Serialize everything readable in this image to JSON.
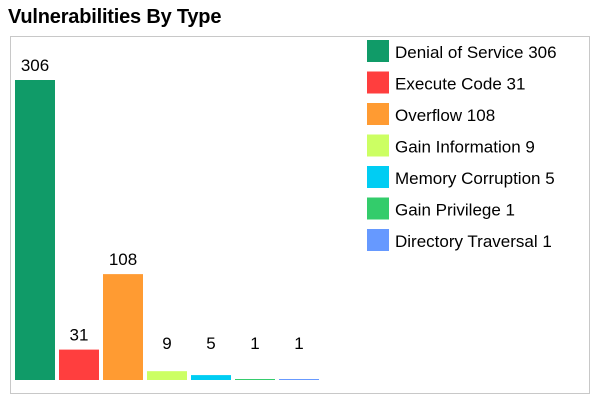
{
  "chart_data": {
    "type": "bar",
    "title": "Vulnerabilities By Type",
    "xlabel": "",
    "ylabel": "",
    "ylim": [
      0,
      306
    ],
    "grid": false,
    "legend": "right",
    "categories": [
      "Denial of Service",
      "Execute Code",
      "Overflow",
      "Gain Information",
      "Memory Corruption",
      "Gain Privilege",
      "Directory Traversal"
    ],
    "values": [
      306,
      31,
      108,
      9,
      5,
      1,
      1
    ],
    "colors": [
      "#109b68",
      "#ff3e3e",
      "#ff9b32",
      "#ccff63",
      "#00cdf3",
      "#33cc6b",
      "#6699ff"
    ],
    "legend_labels": [
      "Denial of Service 306",
      "Execute Code 31",
      "Overflow 108",
      "Gain Information 9",
      "Memory Corruption 5",
      "Gain Privilege 1",
      "Directory Traversal 1"
    ]
  }
}
